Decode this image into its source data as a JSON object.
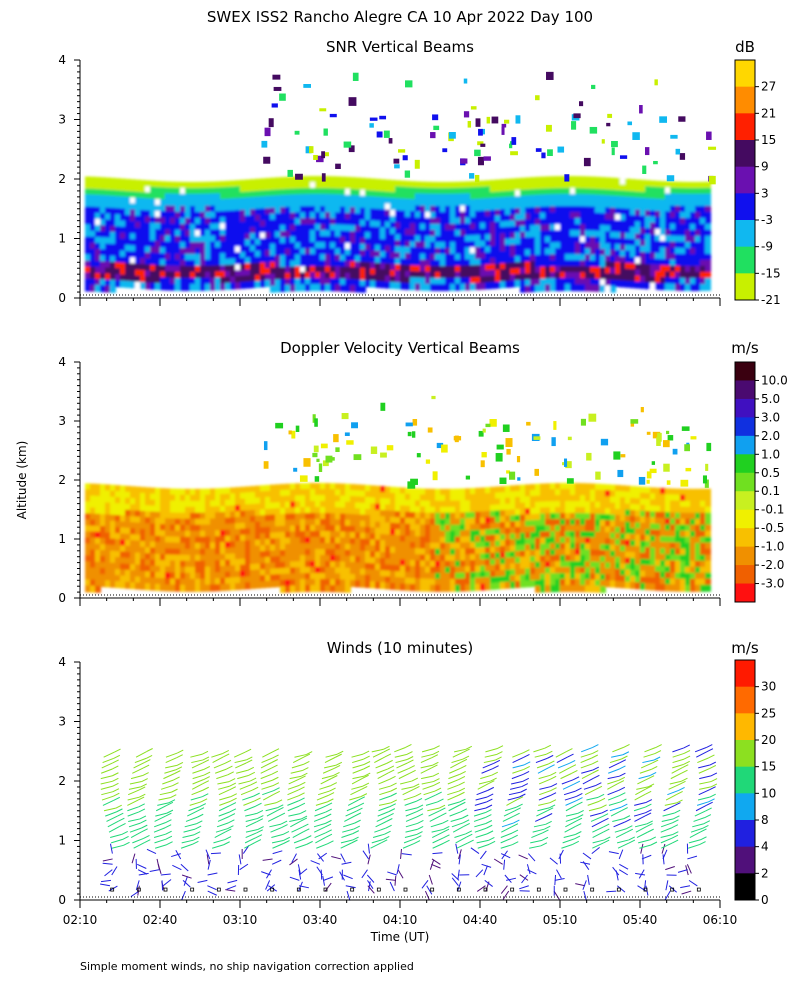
{
  "figure": {
    "title": "SWEX ISS2 Rancho Alegre CA  10 Apr 2022 Day 100",
    "ylabel": "Altitude (km)",
    "xlabel": "Time (UT)",
    "footnote": "Simple moment winds, no ship navigation correction applied"
  },
  "chart_data": [
    {
      "type": "heatmap",
      "title": "SNR Vertical Beams",
      "ylabel": "Altitude (km)",
      "ylim": [
        0,
        4
      ],
      "yticks": [
        "0",
        "1",
        "2",
        "3",
        "4"
      ],
      "xlim": [
        "02:10",
        "06:10"
      ],
      "colorbar": {
        "unit": "dB",
        "labels": [
          "27",
          "21",
          "15",
          "9",
          "3",
          "-3",
          "-9",
          "-15",
          "-21"
        ],
        "colors": [
          "#ffd700",
          "#ff8c00",
          "#ff2000",
          "#440a60",
          "#6a10b0",
          "#1010ee",
          "#10b8f0",
          "#20e060",
          "#c8f000",
          "#ffffff"
        ]
      },
      "features": {
        "data_top_km": 2.0,
        "low_layer_km": [
          0.4,
          0.6
        ],
        "scattered_echo_top_km": 3.8
      }
    },
    {
      "type": "heatmap",
      "title": "Doppler Velocity Vertical Beams",
      "ylabel": "Altitude (km)",
      "ylim": [
        0,
        4
      ],
      "yticks": [
        "0",
        "1",
        "2",
        "3",
        "4"
      ],
      "xlim": [
        "02:10",
        "06:10"
      ],
      "colorbar": {
        "unit": "m/s",
        "labels": [
          "10.0",
          "5.0",
          "3.0",
          "2.0",
          "1.0",
          "0.5",
          "0.1",
          "-0.1",
          "-0.5",
          "-1.0",
          "-2.0",
          "-3.0"
        ],
        "colors": [
          "#3a0010",
          "#4a0a70",
          "#4010c0",
          "#1030e0",
          "#10a0f0",
          "#20d020",
          "#70e020",
          "#c8f020",
          "#f0f000",
          "#f8c000",
          "#f09000",
          "#f06000",
          "#ff1010"
        ]
      },
      "features": {
        "data_top_km": 1.9
      }
    },
    {
      "type": "barbs",
      "title": "Winds (10 minutes)",
      "ylabel": "Altitude (km)",
      "ylim": [
        0,
        4
      ],
      "yticks": [
        "0",
        "1",
        "2",
        "3",
        "4"
      ],
      "xticks": [
        "02:10",
        "02:40",
        "03:10",
        "03:40",
        "04:10",
        "04:40",
        "05:10",
        "05:40",
        "06:10"
      ],
      "colorbar": {
        "unit": "m/s",
        "labels": [
          "30",
          "25",
          "20",
          "15",
          "10",
          "8",
          "4",
          "2",
          "0"
        ],
        "colors": [
          "#ff1a00",
          "#ff6a00",
          "#ffb800",
          "#8ce020",
          "#20d878",
          "#10a8f0",
          "#2020e0",
          "#50107a",
          "#000000"
        ]
      },
      "profile_times_min": [
        10,
        20,
        30,
        40,
        50,
        60,
        70,
        80,
        90,
        100,
        110,
        120,
        130,
        140,
        150,
        160,
        170,
        180,
        190,
        200,
        210,
        220,
        230
      ],
      "profile_tops_km": [
        2.4,
        2.45,
        2.45,
        2.4,
        2.4,
        2.4,
        2.45,
        2.4,
        2.45,
        2.45,
        2.5,
        2.5,
        2.55,
        2.5,
        2.55,
        2.45,
        2.5,
        2.4,
        2.5,
        2.5,
        2.55,
        2.55,
        2.5
      ]
    }
  ]
}
